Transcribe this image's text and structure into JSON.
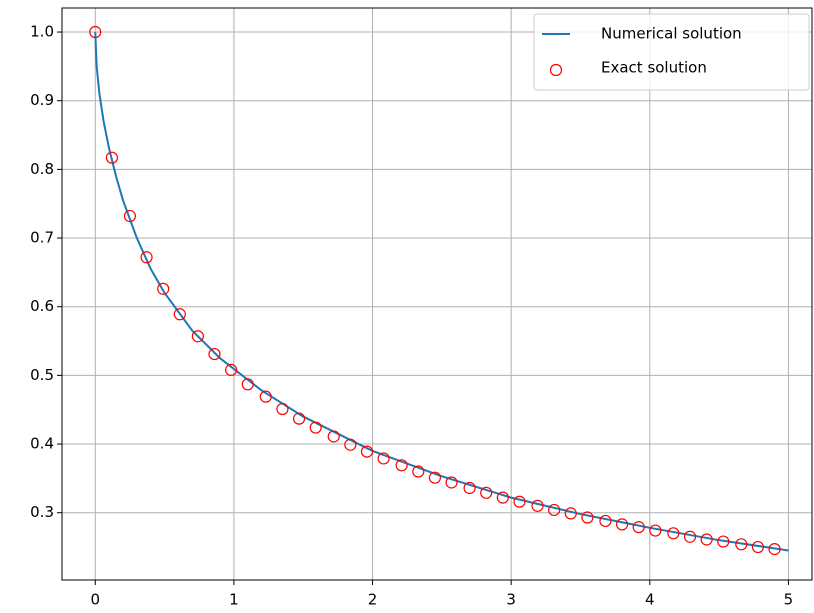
{
  "chart_data": {
    "type": "line",
    "xlim": [
      -0.24,
      5.17
    ],
    "ylim": [
      0.202,
      1.035
    ],
    "xticks": [
      0,
      1,
      2,
      3,
      4,
      5
    ],
    "yticks": [
      0.3,
      0.4,
      0.5,
      0.6,
      0.7,
      0.8,
      0.9,
      {
        "value": 1,
        "label": "1.0"
      }
    ],
    "grid": true,
    "legend": "upper right",
    "series": [
      {
        "name": "Numerical solution",
        "type": "line",
        "color": "#1f77b4",
        "x": [
          0,
          0.01,
          0.03,
          0.06,
          0.1,
          0.15,
          0.2,
          0.3,
          0.4,
          0.5,
          0.7,
          0.9,
          1.2,
          1.5,
          2,
          2.5,
          3,
          3.5,
          4,
          4.5,
          5
        ],
        "values": [
          1.0,
          0.95,
          0.91,
          0.87,
          0.83,
          0.79,
          0.755,
          0.7,
          0.655,
          0.62,
          0.565,
          0.525,
          0.478,
          0.44,
          0.39,
          0.353,
          0.322,
          0.298,
          0.278,
          0.26,
          0.245
        ]
      },
      {
        "name": "Exact solution",
        "type": "scatter",
        "color": "#ff0000",
        "x": [
          0,
          0.12,
          0.25,
          0.37,
          0.49,
          0.61,
          0.74,
          0.86,
          0.98,
          1.1,
          1.23,
          1.35,
          1.47,
          1.59,
          1.72,
          1.84,
          1.96,
          2.08,
          2.21,
          2.33,
          2.45,
          2.57,
          2.7,
          2.82,
          2.94,
          3.06,
          3.19,
          3.31,
          3.43,
          3.55,
          3.68,
          3.8,
          3.92,
          4.04,
          4.17,
          4.29,
          4.41,
          4.53,
          4.66,
          4.78,
          4.9
        ],
        "values": [
          1.0,
          0.817,
          0.732,
          0.672,
          0.626,
          0.589,
          0.557,
          0.531,
          0.508,
          0.487,
          0.469,
          0.451,
          0.437,
          0.424,
          0.411,
          0.399,
          0.389,
          0.379,
          0.369,
          0.36,
          0.351,
          0.344,
          0.336,
          0.329,
          0.322,
          0.316,
          0.31,
          0.304,
          0.299,
          0.293,
          0.288,
          0.283,
          0.279,
          0.274,
          0.27,
          0.265,
          0.261,
          0.258,
          0.254,
          0.25,
          0.247
        ]
      }
    ]
  }
}
